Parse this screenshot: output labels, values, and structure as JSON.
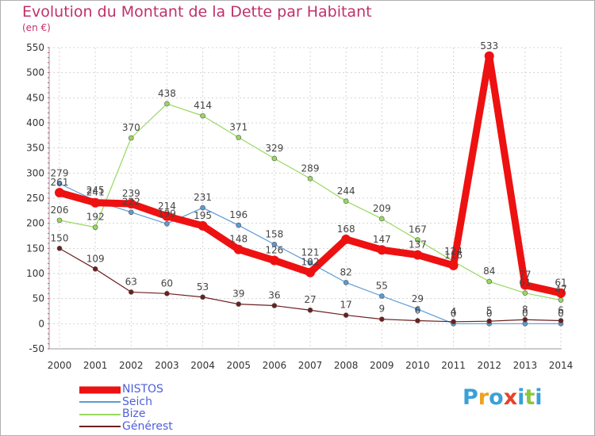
{
  "header": {
    "title": "Evolution du Montant de la Dette par Habitant",
    "subtitle": "(en €)"
  },
  "logo": {
    "letters": [
      "P",
      "r",
      "o",
      "x",
      "i",
      "t",
      "i"
    ],
    "colors": [
      "#3aa0d8",
      "#f0a020",
      "#3aa0d8",
      "#e8402a",
      "#3aa0d8",
      "#8cc63f",
      "#3aa0d8"
    ]
  },
  "chart_data": {
    "type": "line",
    "x": [
      "2000",
      "2001",
      "2002",
      "2003",
      "2004",
      "2005",
      "2006",
      "2007",
      "2008",
      "2009",
      "2010",
      "2011",
      "2012",
      "2013",
      "2014"
    ],
    "ylim": [
      -50,
      550
    ],
    "yticks": [
      -50,
      0,
      50,
      100,
      150,
      200,
      250,
      300,
      350,
      400,
      450,
      500,
      550
    ],
    "grid": true,
    "legend_position": "bottom-left",
    "series": [
      {
        "name": "NISTOS",
        "color": "#ee1111",
        "width": 9,
        "values": [
          261,
          241,
          239,
          214,
          195,
          148,
          126,
          102,
          168,
          147,
          137,
          116,
          533,
          77,
          61
        ],
        "labels": [
          "261",
          "241",
          "239",
          "214",
          "195",
          "148",
          "126",
          "102",
          "168",
          "147",
          "137",
          "116",
          "533",
          "77",
          "61"
        ]
      },
      {
        "name": "Seich",
        "color": "#5b9bd5",
        "width": 1.2,
        "values": [
          279,
          245,
          222,
          199,
          231,
          196,
          158,
          121,
          82,
          55,
          29,
          0,
          0,
          0,
          0
        ],
        "labels": [
          "279",
          "245",
          "222",
          "199",
          "231",
          "196",
          "158",
          "121",
          "82",
          "55",
          "29",
          "0",
          "0",
          "0",
          "0"
        ]
      },
      {
        "name": "Bize",
        "color": "#99d860",
        "width": 1.2,
        "values": [
          206,
          192,
          370,
          438,
          414,
          371,
          329,
          289,
          244,
          209,
          167,
          124,
          84,
          61,
          47
        ],
        "labels": [
          "206",
          "192",
          "370",
          "438",
          "414",
          "371",
          "329",
          "289",
          "244",
          "209",
          "167",
          "124",
          "84",
          "61",
          "47"
        ]
      },
      {
        "name": "Générest",
        "color": "#6b2020",
        "width": 1.2,
        "values": [
          150,
          109,
          63,
          60,
          53,
          39,
          36,
          27,
          17,
          9,
          6,
          4,
          5,
          8,
          6
        ],
        "labels": [
          "150",
          "109",
          "63",
          "60",
          "53",
          "39",
          "36",
          "27",
          "17",
          "9",
          "6",
          "4",
          "5",
          "8",
          "6"
        ]
      }
    ]
  }
}
